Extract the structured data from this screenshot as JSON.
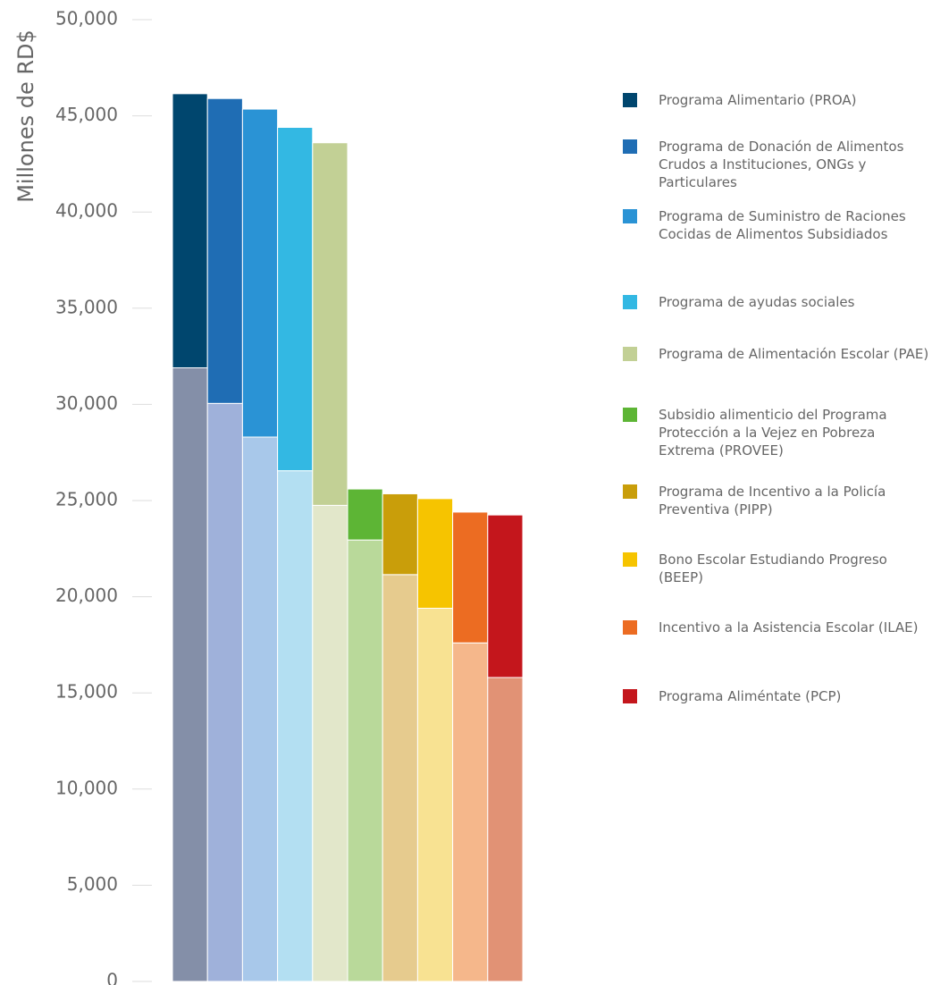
{
  "chart_data": {
    "type": "stacked-bar",
    "ylabel": "Millones de RD$",
    "categories": [
      "Programa Alimentario (PROA)",
      "Programa de Donación de Alimentos Crudos a Instituciones, ONGs y Particulares",
      "Programa de Suministro de Raciones Cocidas de Alimentos Subsidiados",
      "Programa de ayudas sociales",
      "Programa de Alimentación Escolar (PAE)",
      "Subsidio alimenticio del Programa Protección a la Vejez en Pobreza Extrema (PROVEE)",
      "Programa de Incentivo a la Policía Preventiva (PIPP)",
      "Bono Escolar Estudiando Progreso (BEEP)",
      "Incentivo a la Asistencia Escolar (ILAE)",
      "Programa Aliméntate (PCP)"
    ],
    "colors": [
      "#00466e",
      "#1f6db4",
      "#2a93d5",
      "#33b8e3",
      "#c2d095",
      "#5db535",
      "#c99e0a",
      "#f6c400",
      "#ec6c22",
      "#c4161c"
    ],
    "series": [
      {
        "values": [
          31900,
          30050,
          28300,
          26550,
          24750,
          22950,
          21150,
          19400,
          17600,
          15800
        ],
        "colors": [
          "#848fa8",
          "#9fb1da",
          "#a8c8ea",
          "#b3dff2",
          "#e2e7ca",
          "#b9d99a",
          "#e6cb8e",
          "#f8e292",
          "#f5b78b",
          "#e19275"
        ]
      },
      {
        "values": [
          14250,
          15850,
          17050,
          17850,
          18850,
          2650,
          4200,
          5700,
          6800,
          8450
        ],
        "colors": [
          "#00466e",
          "#1f6db4",
          "#2a93d5",
          "#33b8e3",
          "#c2d095",
          "#5db535",
          "#c99e0a",
          "#f6c400",
          "#ec6c22",
          "#c4161c"
        ]
      }
    ],
    "ylim": [
      0,
      50000
    ],
    "yticks": [
      0,
      {
        "value": 5000,
        "label": "5,000"
      },
      {
        "value": 10000,
        "label": "10,000"
      },
      {
        "value": 15000,
        "label": "15,000"
      },
      {
        "value": 20000,
        "label": "20,000"
      },
      {
        "value": 25000,
        "label": "25,000"
      },
      {
        "value": 30000,
        "label": "30,000"
      },
      {
        "value": 35000,
        "label": "35,000"
      },
      {
        "value": 40000,
        "label": "40,000"
      },
      {
        "value": 45000,
        "label": "45,000"
      },
      {
        "value": 50000,
        "label": "50,000"
      }
    ]
  }
}
